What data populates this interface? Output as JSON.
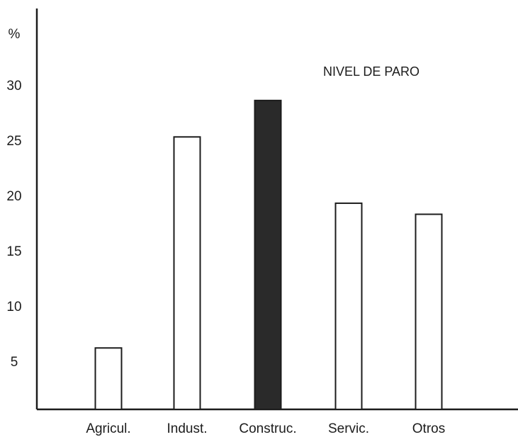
{
  "chart_data": {
    "type": "bar",
    "title": "NIVEL DE PARO",
    "ylabel": "%",
    "xlabel": "",
    "categories": [
      "Agricul.",
      "Indust.",
      "Construc.",
      "Servic.",
      "Otros"
    ],
    "values": [
      6.2,
      25.3,
      28.6,
      19.3,
      18.3
    ],
    "highlighted": "Construc.",
    "ylim": [
      0,
      31
    ],
    "yticks": [
      5,
      10,
      15,
      20,
      25,
      30
    ],
    "grid": false,
    "colors": {
      "ink": "#1c1c1c",
      "bar_fill": "#ffffff",
      "highlight_fill": "#2a2a2a",
      "background": "#ffffff"
    }
  }
}
